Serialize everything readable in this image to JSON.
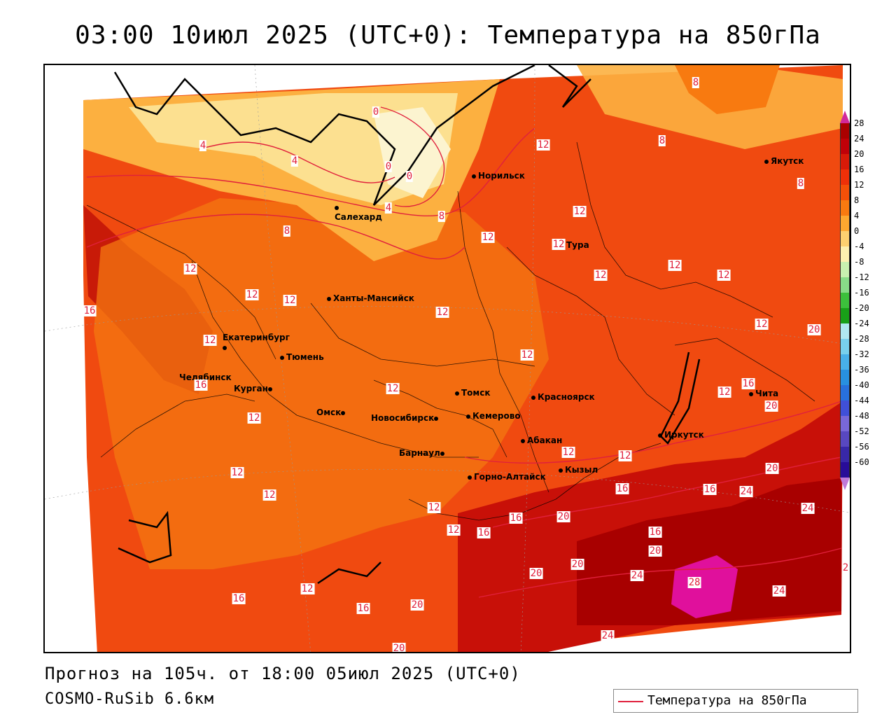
{
  "title": "03:00 10июл 2025 (UTC+0): Температура на 850гПа",
  "footer": {
    "forecast": "Прогноз на 105ч. от 18:00 05июл 2025 (UTC+0)",
    "model": "COSMO-RuSib 6.6км"
  },
  "legend": {
    "label": "Температура на 850гПа",
    "line_color": "#e0203c"
  },
  "colorbar": {
    "ticks": [
      "28",
      "24",
      "20",
      "16",
      "12",
      "8",
      "4",
      "0",
      "-4",
      "-8",
      "-12",
      "-16",
      "-20",
      "-24",
      "-28",
      "-32",
      "-36",
      "-40",
      "-44",
      "-48",
      "-52",
      "-56",
      "-60"
    ],
    "colors": [
      "#aa0000",
      "#c00008",
      "#d81a08",
      "#ee3008",
      "#f45008",
      "#f87a10",
      "#fca830",
      "#fcd070",
      "#fcf0b0",
      "#c8f0b0",
      "#88dc88",
      "#3cc03c",
      "#18a018",
      "#b0e8f0",
      "#78d0ec",
      "#48b0e8",
      "#2890e0",
      "#2870dc",
      "#4050d8",
      "#7868d8",
      "#5848c0",
      "#3828a8",
      "#280c98"
    ]
  },
  "cities": [
    {
      "name": "Норильск"
    },
    {
      "name": "Якутск"
    },
    {
      "name": "Салехард"
    },
    {
      "name": "Тура"
    },
    {
      "name": "Ханты-Мансийск"
    },
    {
      "name": "Екатеринбург"
    },
    {
      "name": "Тюмень"
    },
    {
      "name": "Челябинск"
    },
    {
      "name": "Курган"
    },
    {
      "name": "Омск"
    },
    {
      "name": "Новосибирск"
    },
    {
      "name": "Томск"
    },
    {
      "name": "Кемерово"
    },
    {
      "name": "Красноярск"
    },
    {
      "name": "Барнаул"
    },
    {
      "name": "Абакан"
    },
    {
      "name": "Горно-Алтайск"
    },
    {
      "name": "Кызыл"
    },
    {
      "name": "Иркутск"
    },
    {
      "name": "Чита"
    }
  ],
  "contour_labels": [
    "8",
    "12",
    "8",
    "8",
    "4",
    "4",
    "0",
    "0",
    "0",
    "4",
    "8",
    "12",
    "12",
    "12",
    "8",
    "12",
    "12",
    "12",
    "12",
    "12",
    "16",
    "12",
    "12",
    "12",
    "12",
    "12",
    "12",
    "12",
    "12",
    "12",
    "20",
    "16",
    "12",
    "16",
    "12",
    "12",
    "12",
    "12",
    "16",
    "12",
    "16",
    "20",
    "16",
    "24",
    "20",
    "24",
    "16",
    "16",
    "20",
    "20",
    "20",
    "24",
    "28",
    "24",
    "12",
    "16",
    "20",
    "16",
    "20",
    "24",
    "20",
    "2"
  ]
}
